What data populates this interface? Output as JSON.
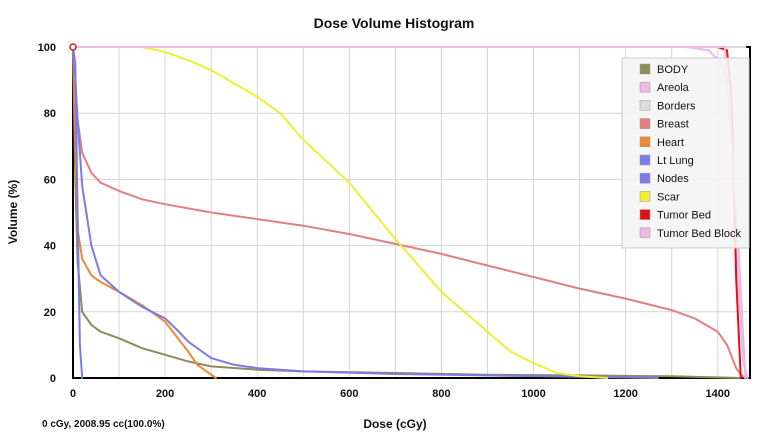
{
  "chart_data": {
    "type": "line",
    "title": "Dose Volume Histogram",
    "xlabel": "Dose (cGy)",
    "ylabel": "Volume (%)",
    "xlim": [
      0,
      1470
    ],
    "ylim": [
      0,
      100
    ],
    "xticks": [
      0,
      200,
      400,
      600,
      800,
      1000,
      1200,
      1400
    ],
    "yticks": [
      0,
      20,
      40,
      60,
      80,
      100
    ],
    "grid": true,
    "legend_position": "top-right",
    "series": [
      {
        "name": "BODY",
        "color": "#8c8c5c",
        "x": [
          0,
          5,
          10,
          20,
          40,
          60,
          100,
          150,
          200,
          250,
          300,
          400,
          500,
          700,
          900,
          1100,
          1300,
          1450
        ],
        "y": [
          100,
          60,
          35,
          20,
          16,
          14,
          12,
          9,
          7,
          5,
          3.5,
          2.5,
          2,
          1.5,
          1,
          0.8,
          0.5,
          0
        ]
      },
      {
        "name": "Areola",
        "color": "#f0b8e8",
        "x": [
          0,
          1330,
          1380,
          1410,
          1425,
          1440,
          1455,
          1465
        ],
        "y": [
          100,
          100,
          99,
          95,
          85,
          40,
          5,
          0
        ]
      },
      {
        "name": "Borders",
        "color": "#dddddd",
        "x": [
          0,
          1460
        ],
        "y": [
          100,
          100
        ]
      },
      {
        "name": "Breast",
        "color": "#e08080",
        "x": [
          0,
          5,
          10,
          20,
          40,
          60,
          100,
          150,
          200,
          300,
          400,
          500,
          600,
          700,
          800,
          900,
          1000,
          1100,
          1200,
          1300,
          1350,
          1400,
          1420,
          1440,
          1450,
          1460
        ],
        "y": [
          100,
          88,
          78,
          68,
          62,
          59,
          56.5,
          54,
          52.5,
          50,
          48,
          46,
          43.5,
          40.5,
          37.5,
          34,
          30.5,
          27,
          24,
          20.5,
          18,
          14,
          10,
          3,
          1,
          0
        ]
      },
      {
        "name": "Heart",
        "color": "#ee8833",
        "x": [
          0,
          5,
          10,
          20,
          40,
          60,
          100,
          150,
          200,
          250,
          270,
          300,
          310
        ],
        "y": [
          100,
          75,
          45,
          36,
          31,
          29,
          26,
          22,
          17,
          8,
          4,
          1,
          0
        ]
      },
      {
        "name": "Lt Lung",
        "color": "#7b7be8",
        "x": [
          0,
          5,
          10,
          20,
          40,
          60,
          100,
          150,
          200,
          230,
          250,
          300,
          350,
          400,
          500,
          700,
          900,
          1100,
          1270
        ],
        "y": [
          100,
          90,
          78,
          58,
          40,
          31,
          26,
          21.5,
          18,
          14,
          11,
          6,
          4,
          3,
          2,
          1.2,
          0.8,
          0.4,
          0
        ]
      },
      {
        "name": "Nodes",
        "color": "#7b7be8",
        "x": [
          0,
          5,
          10,
          15,
          20
        ],
        "y": [
          100,
          95,
          50,
          10,
          0
        ]
      },
      {
        "name": "Scar",
        "color": "#eeee33",
        "x": [
          0,
          150,
          200,
          250,
          300,
          400,
          450,
          500,
          600,
          700,
          800,
          900,
          950,
          1000,
          1050,
          1100,
          1160
        ],
        "y": [
          100,
          100,
          98.5,
          96,
          93,
          85,
          80,
          72,
          59,
          42,
          26,
          14,
          8,
          4.5,
          1.5,
          0.5,
          0
        ]
      },
      {
        "name": "Tumor Bed",
        "color": "#dd1111",
        "x": [
          0,
          1400,
          1420,
          1430,
          1440,
          1450
        ],
        "y": [
          100,
          100,
          99,
          85,
          30,
          0
        ]
      },
      {
        "name": "Tumor Bed Block",
        "color": "#f0b8e8",
        "x": [
          0,
          1415,
          1445,
          1460
        ],
        "y": [
          100,
          100,
          40,
          0
        ]
      }
    ]
  },
  "status_readout": "0 cGy, 2008.95 cc(100.0%)"
}
